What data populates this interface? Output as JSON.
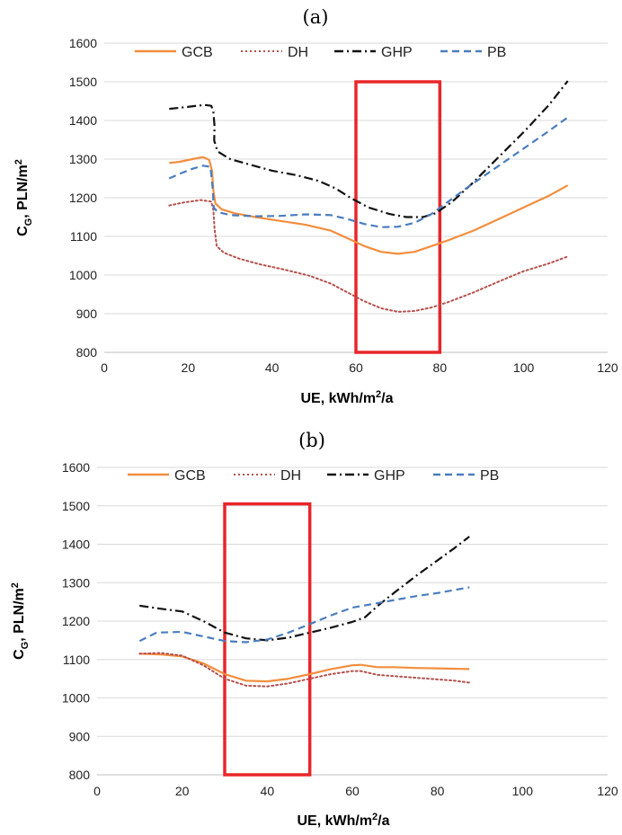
{
  "chart_data": [
    {
      "type": "line",
      "title": "(a)",
      "xlabel_main": "UE, kWh/m",
      "xlabel_sup": "2",
      "xlabel_rest": "/a",
      "ylabel_main": "C",
      "ylabel_sub": "G",
      "ylabel_mid": ", PLN/m",
      "ylabel_sup": "2",
      "xlim": [
        0,
        120
      ],
      "ylim": [
        800,
        1600
      ],
      "xticks": [
        "0",
        "20",
        "40",
        "60",
        "80",
        "100",
        "120"
      ],
      "yticks": [
        "800",
        "900",
        "1000",
        "1100",
        "1200",
        "1300",
        "1400",
        "1500",
        "1600"
      ],
      "legend_position": "top",
      "highlight_box": {
        "x": [
          60,
          80
        ],
        "y": [
          800,
          1500
        ],
        "color": "#e8262a"
      },
      "series": [
        {
          "name": "GCB",
          "color": "#f28e3d",
          "style": "solid",
          "points": [
            [
              15.5,
              1290
            ],
            [
              18,
              1293
            ],
            [
              21,
              1300
            ],
            [
              23.5,
              1305
            ],
            [
              25,
              1298
            ],
            [
              25.7,
              1270
            ],
            [
              26,
              1220
            ],
            [
              26.5,
              1185
            ],
            [
              28,
              1170
            ],
            [
              31,
              1160
            ],
            [
              36,
              1150
            ],
            [
              42,
              1140
            ],
            [
              48,
              1130
            ],
            [
              54,
              1115
            ],
            [
              58,
              1095
            ],
            [
              62,
              1075
            ],
            [
              66,
              1060
            ],
            [
              70,
              1055
            ],
            [
              74,
              1060
            ],
            [
              78,
              1075
            ],
            [
              82,
              1090
            ],
            [
              88,
              1115
            ],
            [
              94,
              1145
            ],
            [
              100,
              1175
            ],
            [
              106,
              1205
            ],
            [
              110.5,
              1232
            ]
          ]
        },
        {
          "name": "DH",
          "color": "#b5504c",
          "style": "dotted",
          "points": [
            [
              15.5,
              1180
            ],
            [
              19,
              1188
            ],
            [
              23,
              1194
            ],
            [
              25.5,
              1190
            ],
            [
              26,
              1170
            ],
            [
              26.3,
              1120
            ],
            [
              26.8,
              1075
            ],
            [
              28.5,
              1058
            ],
            [
              32,
              1043
            ],
            [
              37,
              1028
            ],
            [
              43,
              1014
            ],
            [
              49,
              998
            ],
            [
              54,
              978
            ],
            [
              58,
              955
            ],
            [
              62,
              932
            ],
            [
              66,
              914
            ],
            [
              70,
              905
            ],
            [
              74,
              907
            ],
            [
              78,
              916
            ],
            [
              82,
              930
            ],
            [
              88,
              955
            ],
            [
              94,
              983
            ],
            [
              100,
              1010
            ],
            [
              106,
              1030
            ],
            [
              110.5,
              1048
            ]
          ]
        },
        {
          "name": "GHP",
          "color": "#111111",
          "style": "dashdot",
          "points": [
            [
              15.5,
              1430
            ],
            [
              19,
              1434
            ],
            [
              22,
              1438
            ],
            [
              24,
              1440
            ],
            [
              25.5,
              1438
            ],
            [
              26,
              1425
            ],
            [
              26.3,
              1385
            ],
            [
              26.2,
              1348
            ],
            [
              27,
              1320
            ],
            [
              30,
              1300
            ],
            [
              35,
              1285
            ],
            [
              40,
              1270
            ],
            [
              46,
              1258
            ],
            [
              51,
              1244
            ],
            [
              55,
              1225
            ],
            [
              59,
              1198
            ],
            [
              63,
              1175
            ],
            [
              68,
              1158
            ],
            [
              72,
              1150
            ],
            [
              76,
              1150
            ],
            [
              79,
              1160
            ],
            [
              83,
              1190
            ],
            [
              88,
              1240
            ],
            [
              94,
              1305
            ],
            [
              100,
              1370
            ],
            [
              106,
              1440
            ],
            [
              110.5,
              1502
            ]
          ]
        },
        {
          "name": "PB",
          "color": "#4a7dbf",
          "style": "dashed",
          "points": [
            [
              15.5,
              1250
            ],
            [
              18,
              1262
            ],
            [
              21,
              1275
            ],
            [
              23.5,
              1283
            ],
            [
              25.3,
              1280
            ],
            [
              25.8,
              1230
            ],
            [
              26.1,
              1175
            ],
            [
              27,
              1163
            ],
            [
              30,
              1155
            ],
            [
              36,
              1152
            ],
            [
              42,
              1153
            ],
            [
              48,
              1157
            ],
            [
              54,
              1155
            ],
            [
              58,
              1145
            ],
            [
              62,
              1132
            ],
            [
              66,
              1124
            ],
            [
              70,
              1125
            ],
            [
              74,
              1135
            ],
            [
              78,
              1158
            ],
            [
              82,
              1190
            ],
            [
              87,
              1230
            ],
            [
              93,
              1275
            ],
            [
              99,
              1320
            ],
            [
              105,
              1365
            ],
            [
              110.5,
              1408
            ]
          ]
        }
      ]
    },
    {
      "type": "line",
      "title": "(b)",
      "xlabel_main": "UE, kWh/m",
      "xlabel_sup": "2",
      "xlabel_rest": "/a",
      "ylabel_main": "C",
      "ylabel_sub": "G",
      "ylabel_mid": ", PLN/m",
      "ylabel_sup": "2",
      "xlim": [
        0,
        120
      ],
      "ylim": [
        800,
        1600
      ],
      "xticks": [
        "0",
        "20",
        "40",
        "60",
        "80",
        "100",
        "120"
      ],
      "yticks": [
        "800",
        "900",
        "1000",
        "1100",
        "1200",
        "1300",
        "1400",
        "1500",
        "1600"
      ],
      "legend_position": "top",
      "highlight_box": {
        "x": [
          30,
          50
        ],
        "y": [
          800,
          1505
        ],
        "color": "#e8262a"
      },
      "series": [
        {
          "name": "GCB",
          "color": "#f28e3d",
          "style": "solid",
          "points": [
            [
              10,
              1115
            ],
            [
              15,
              1113
            ],
            [
              20,
              1108
            ],
            [
              25,
              1090
            ],
            [
              30,
              1062
            ],
            [
              35,
              1045
            ],
            [
              40,
              1043
            ],
            [
              45,
              1050
            ],
            [
              50,
              1062
            ],
            [
              55,
              1075
            ],
            [
              60,
              1085
            ],
            [
              62,
              1086
            ],
            [
              66,
              1080
            ],
            [
              70,
              1080
            ],
            [
              75,
              1078
            ],
            [
              80,
              1077
            ],
            [
              87.5,
              1075
            ]
          ]
        },
        {
          "name": "DH",
          "color": "#b5504c",
          "style": "dotted",
          "points": [
            [
              10,
              1115
            ],
            [
              15,
              1117
            ],
            [
              20,
              1110
            ],
            [
              25,
              1085
            ],
            [
              30,
              1050
            ],
            [
              35,
              1032
            ],
            [
              40,
              1030
            ],
            [
              45,
              1038
            ],
            [
              50,
              1050
            ],
            [
              55,
              1062
            ],
            [
              60,
              1070
            ],
            [
              62,
              1070
            ],
            [
              66,
              1060
            ],
            [
              72,
              1055
            ],
            [
              78,
              1050
            ],
            [
              84,
              1045
            ],
            [
              87.5,
              1040
            ]
          ]
        },
        {
          "name": "GHP",
          "color": "#111111",
          "style": "dashdot",
          "points": [
            [
              10,
              1240
            ],
            [
              15,
              1232
            ],
            [
              20,
              1225
            ],
            [
              25,
              1200
            ],
            [
              30,
              1170
            ],
            [
              35,
              1155
            ],
            [
              40,
              1150
            ],
            [
              45,
              1157
            ],
            [
              50,
              1170
            ],
            [
              55,
              1183
            ],
            [
              60,
              1198
            ],
            [
              63,
              1210
            ],
            [
              66,
              1240
            ],
            [
              70,
              1275
            ],
            [
              75,
              1318
            ],
            [
              80,
              1358
            ],
            [
              84,
              1390
            ],
            [
              87.5,
              1420
            ]
          ]
        },
        {
          "name": "PB",
          "color": "#4a7dbf",
          "style": "dashed",
          "points": [
            [
              10,
              1148
            ],
            [
              14,
              1170
            ],
            [
              20,
              1172
            ],
            [
              25,
              1160
            ],
            [
              30,
              1148
            ],
            [
              35,
              1145
            ],
            [
              40,
              1152
            ],
            [
              45,
              1170
            ],
            [
              50,
              1192
            ],
            [
              55,
              1215
            ],
            [
              60,
              1235
            ],
            [
              65,
              1245
            ],
            [
              70,
              1255
            ],
            [
              75,
              1265
            ],
            [
              80,
              1273
            ],
            [
              87.5,
              1288
            ]
          ]
        }
      ]
    }
  ]
}
